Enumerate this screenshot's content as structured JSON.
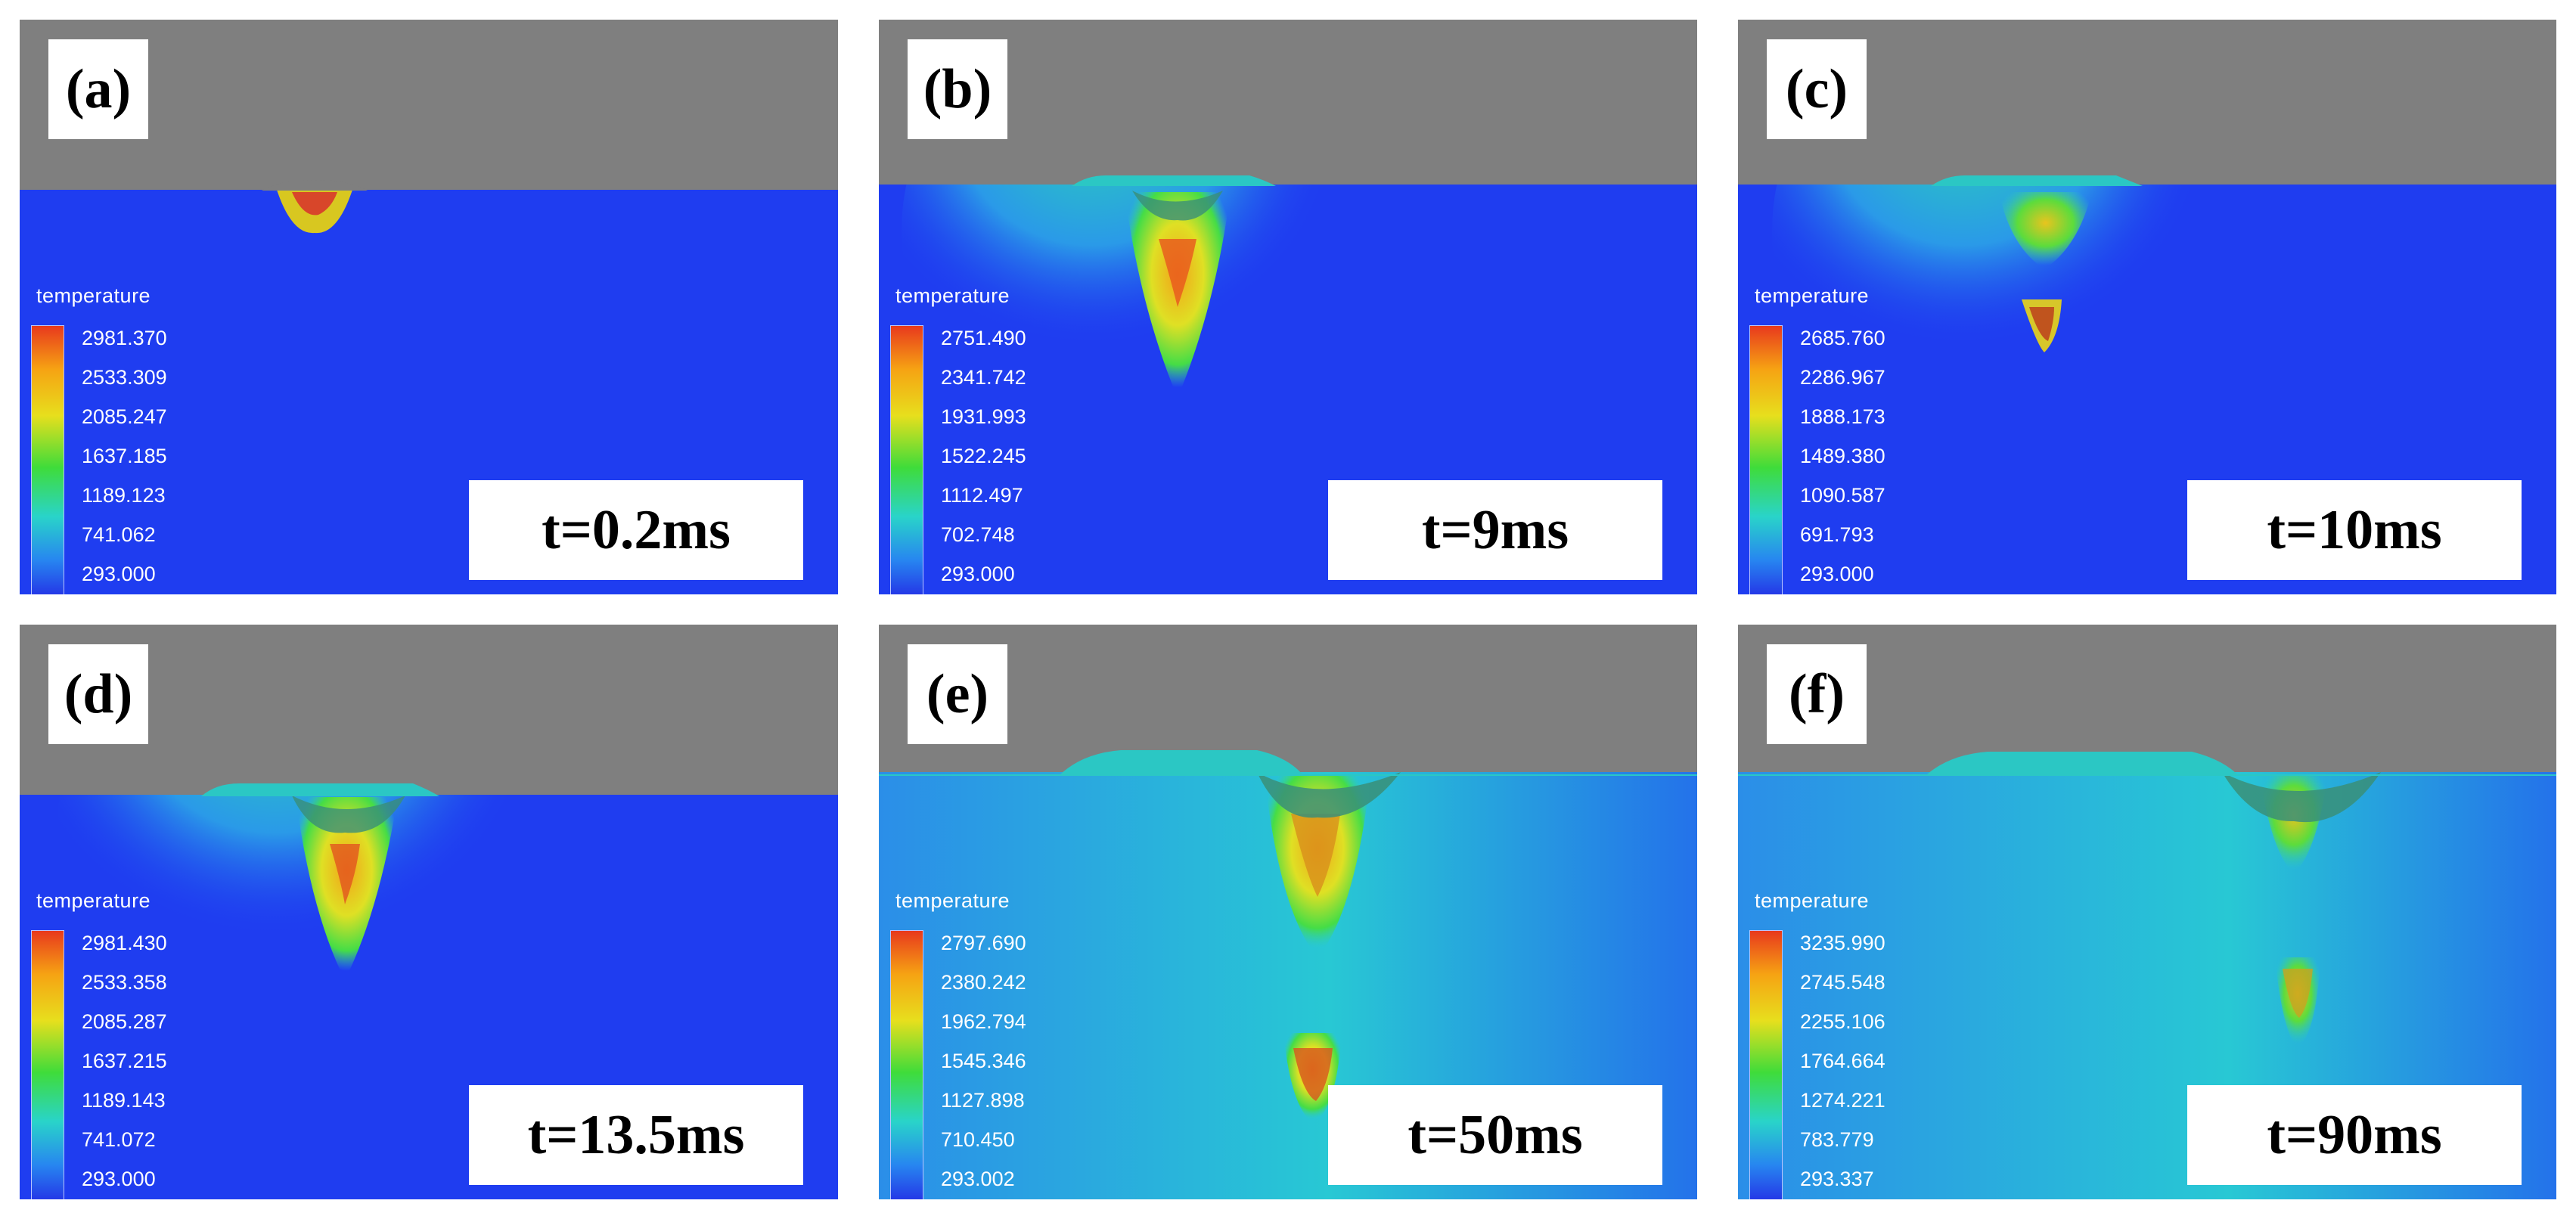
{
  "panels": [
    {
      "label": "(a)",
      "time": "t=0.2ms",
      "legend_title": "temperature",
      "ticks": [
        "2981.370",
        "2533.309",
        "2085.247",
        "1637.185",
        "1189.123",
        "741.062",
        "293.000"
      ]
    },
    {
      "label": "(b)",
      "time": "t=9ms",
      "legend_title": "temperature",
      "ticks": [
        "2751.490",
        "2341.742",
        "1931.993",
        "1522.245",
        "1112.497",
        "702.748",
        "293.000"
      ]
    },
    {
      "label": "(c)",
      "time": "t=10ms",
      "legend_title": "temperature",
      "ticks": [
        "2685.760",
        "2286.967",
        "1888.173",
        "1489.380",
        "1090.587",
        "691.793",
        "293.000"
      ]
    },
    {
      "label": "(d)",
      "time": "t=13.5ms",
      "legend_title": "temperature",
      "ticks": [
        "2981.430",
        "2533.358",
        "2085.287",
        "1637.215",
        "1189.143",
        "741.072",
        "293.000"
      ]
    },
    {
      "label": "(e)",
      "time": "t=50ms",
      "legend_title": "temperature",
      "ticks": [
        "2797.690",
        "2380.242",
        "1962.794",
        "1545.346",
        "1127.898",
        "710.450",
        "293.002"
      ]
    },
    {
      "label": "(f)",
      "time": "t=90ms",
      "legend_title": "temperature",
      "ticks": [
        "3235.990",
        "2745.548",
        "2255.106",
        "1764.664",
        "1274.221",
        "783.779",
        "293.337"
      ]
    }
  ],
  "colors": {
    "background_gas": "#7f7f7f",
    "substrate_cold": "#1f3df0",
    "colormap": [
      "#e8391d",
      "#f6a313",
      "#e7df1d",
      "#3fdc3a",
      "#29d4c9",
      "#2786f0",
      "#2430e6"
    ]
  }
}
